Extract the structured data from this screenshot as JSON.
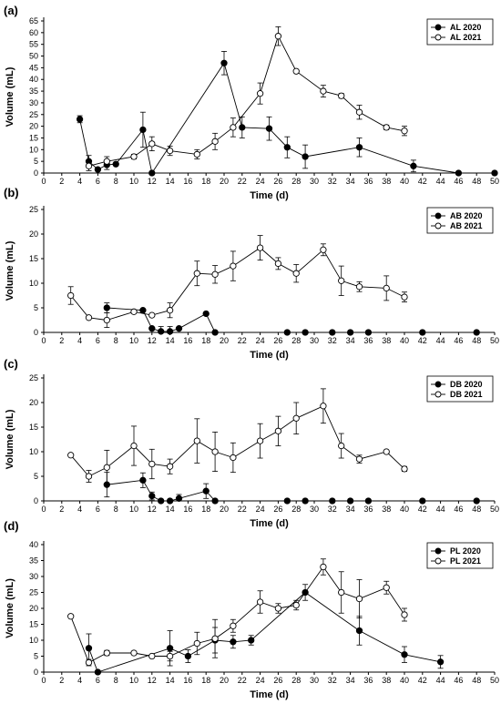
{
  "chart_data": [
    {
      "type": "line",
      "panel_label": "(a)",
      "xlabel": "Time (d)",
      "ylabel": "Volume (mL)",
      "xlim": [
        0,
        50
      ],
      "ylim": [
        0,
        65
      ],
      "xticks": [
        0,
        2,
        4,
        6,
        8,
        10,
        12,
        14,
        16,
        18,
        20,
        22,
        24,
        26,
        28,
        30,
        32,
        34,
        36,
        38,
        40,
        42,
        44,
        46,
        48,
        50
      ],
      "yticks": [
        0,
        5,
        10,
        15,
        20,
        25,
        30,
        35,
        40,
        45,
        50,
        55,
        60,
        65
      ],
      "legend_position": "top-right",
      "series": [
        {
          "name": "AL 2020",
          "marker": "filled",
          "points": [
            {
              "x": 4,
              "y": 23,
              "err": 1.5
            },
            {
              "x": 5,
              "y": 5,
              "err": 2.5
            },
            {
              "x": 6,
              "y": 1.5,
              "err": 0
            },
            {
              "x": 7,
              "y": 3.5,
              "err": 2
            },
            {
              "x": 8,
              "y": 3.8,
              "err": 0
            },
            {
              "x": 11,
              "y": 18.5,
              "err": 7.5
            },
            {
              "x": 12,
              "y": 0,
              "err": 0
            },
            {
              "x": 20,
              "y": 47,
              "err": 5
            },
            {
              "x": 22,
              "y": 19.5,
              "err": 4.5
            },
            {
              "x": 25,
              "y": 19,
              "err": 5
            },
            {
              "x": 27,
              "y": 11,
              "err": 4.5
            },
            {
              "x": 29,
              "y": 7,
              "err": 5
            },
            {
              "x": 35,
              "y": 11,
              "err": 4
            },
            {
              "x": 41,
              "y": 3,
              "err": 2.5
            },
            {
              "x": 46,
              "y": 0,
              "err": 0
            },
            {
              "x": 50,
              "y": 0,
              "err": 0
            }
          ]
        },
        {
          "name": "AL 2021",
          "marker": "open",
          "points": [
            {
              "x": 5,
              "y": 3,
              "err": 2
            },
            {
              "x": 7,
              "y": 5,
              "err": 2
            },
            {
              "x": 10,
              "y": 7,
              "err": 1
            },
            {
              "x": 12,
              "y": 12.5,
              "err": 3
            },
            {
              "x": 14,
              "y": 9.5,
              "err": 2
            },
            {
              "x": 17,
              "y": 8,
              "err": 2
            },
            {
              "x": 19,
              "y": 13.5,
              "err": 3.5
            },
            {
              "x": 21,
              "y": 19.5,
              "err": 4
            },
            {
              "x": 24,
              "y": 34,
              "err": 4.5
            },
            {
              "x": 26,
              "y": 58.5,
              "err": 4
            },
            {
              "x": 28,
              "y": 43.5,
              "err": 0
            },
            {
              "x": 31,
              "y": 35,
              "err": 2.5
            },
            {
              "x": 33,
              "y": 33,
              "err": 1
            },
            {
              "x": 35,
              "y": 26,
              "err": 3
            },
            {
              "x": 38,
              "y": 19.5,
              "err": 1
            },
            {
              "x": 40,
              "y": 18,
              "err": 2
            }
          ]
        }
      ]
    },
    {
      "type": "line",
      "panel_label": "(b)",
      "xlabel": "Time (d)",
      "ylabel": "Volume (mL)",
      "xlim": [
        0,
        50
      ],
      "ylim": [
        0,
        25
      ],
      "xticks": [
        0,
        2,
        4,
        6,
        8,
        10,
        12,
        14,
        16,
        18,
        20,
        22,
        24,
        26,
        28,
        30,
        32,
        34,
        36,
        38,
        40,
        42,
        44,
        46,
        48,
        50
      ],
      "yticks": [
        0,
        5,
        10,
        15,
        20,
        25
      ],
      "legend_position": "top-right",
      "series": [
        {
          "name": "AB 2020",
          "marker": "filled",
          "points": [
            {
              "x": 7,
              "y": 5,
              "err": 1
            },
            {
              "x": 11,
              "y": 4.5,
              "err": 0
            },
            {
              "x": 12,
              "y": 0.8,
              "err": 0
            },
            {
              "x": 13,
              "y": 0.2,
              "err": 1
            },
            {
              "x": 14,
              "y": 0.2,
              "err": 1
            },
            {
              "x": 15,
              "y": 0.8,
              "err": 0
            },
            {
              "x": 18,
              "y": 3.8,
              "err": 0
            },
            {
              "x": 19,
              "y": 0,
              "err": 0
            },
            {
              "x": 27,
              "y": 0,
              "err": 0
            },
            {
              "x": 29,
              "y": 0,
              "err": 0
            },
            {
              "x": 32,
              "y": 0,
              "err": 0
            },
            {
              "x": 34,
              "y": 0,
              "err": 0
            },
            {
              "x": 36,
              "y": 0,
              "err": 0
            },
            {
              "x": 42,
              "y": 0,
              "err": 0
            },
            {
              "x": 48,
              "y": 0,
              "err": 0
            }
          ]
        },
        {
          "name": "AB 2021",
          "marker": "open",
          "points": [
            {
              "x": 3,
              "y": 7.5,
              "err": 1.8
            },
            {
              "x": 5,
              "y": 3,
              "err": 0
            },
            {
              "x": 7,
              "y": 2.5,
              "err": 1.5
            },
            {
              "x": 10,
              "y": 4.2,
              "err": 0
            },
            {
              "x": 12,
              "y": 3.5,
              "err": 0
            },
            {
              "x": 14,
              "y": 4.5,
              "err": 1.5
            },
            {
              "x": 17,
              "y": 12,
              "err": 2.5
            },
            {
              "x": 19,
              "y": 11.8,
              "err": 1.8
            },
            {
              "x": 21,
              "y": 13.5,
              "err": 3
            },
            {
              "x": 24,
              "y": 17.2,
              "err": 2.5
            },
            {
              "x": 26,
              "y": 14,
              "err": 1.2
            },
            {
              "x": 28,
              "y": 12,
              "err": 1.8
            },
            {
              "x": 31,
              "y": 16.8,
              "err": 1.2
            },
            {
              "x": 33,
              "y": 10.5,
              "err": 3
            },
            {
              "x": 35,
              "y": 9.3,
              "err": 1
            },
            {
              "x": 38,
              "y": 9,
              "err": 2.5
            },
            {
              "x": 40,
              "y": 7.2,
              "err": 1
            }
          ]
        }
      ]
    },
    {
      "type": "line",
      "panel_label": "(c)",
      "xlabel": "Time (d)",
      "ylabel": "Volume (mL)",
      "xlim": [
        0,
        50
      ],
      "ylim": [
        0,
        25
      ],
      "xticks": [
        0,
        2,
        4,
        6,
        8,
        10,
        12,
        14,
        16,
        18,
        20,
        22,
        24,
        26,
        28,
        30,
        32,
        34,
        36,
        38,
        40,
        42,
        44,
        46,
        48,
        50
      ],
      "yticks": [
        0,
        5,
        10,
        15,
        20,
        25
      ],
      "legend_position": "top-right",
      "series": [
        {
          "name": "DB 2020",
          "marker": "filled",
          "points": [
            {
              "x": 7,
              "y": 3.3,
              "err": 2.5
            },
            {
              "x": 11,
              "y": 4.2,
              "err": 1.5
            },
            {
              "x": 12,
              "y": 1,
              "err": 0.8
            },
            {
              "x": 13,
              "y": 0,
              "err": 0
            },
            {
              "x": 14,
              "y": 0,
              "err": 0
            },
            {
              "x": 15,
              "y": 0.5,
              "err": 0.8
            },
            {
              "x": 18,
              "y": 2,
              "err": 1.5
            },
            {
              "x": 19,
              "y": 0,
              "err": 0
            },
            {
              "x": 27,
              "y": 0,
              "err": 0
            },
            {
              "x": 29,
              "y": 0,
              "err": 0
            },
            {
              "x": 32,
              "y": 0,
              "err": 0
            },
            {
              "x": 34,
              "y": 0,
              "err": 0
            },
            {
              "x": 36,
              "y": 0,
              "err": 0
            },
            {
              "x": 42,
              "y": 0,
              "err": 0
            },
            {
              "x": 48,
              "y": 0,
              "err": 0
            }
          ]
        },
        {
          "name": "DB 2021",
          "marker": "open",
          "points": [
            {
              "x": 3,
              "y": 9.3,
              "err": 0
            },
            {
              "x": 5,
              "y": 5,
              "err": 1.2
            },
            {
              "x": 7,
              "y": 6.8,
              "err": 3.5
            },
            {
              "x": 10,
              "y": 11.2,
              "err": 4
            },
            {
              "x": 12,
              "y": 7.5,
              "err": 3
            },
            {
              "x": 14,
              "y": 7,
              "err": 1.5
            },
            {
              "x": 17,
              "y": 12.2,
              "err": 4.5
            },
            {
              "x": 19,
              "y": 10,
              "err": 4
            },
            {
              "x": 21,
              "y": 8.8,
              "err": 3
            },
            {
              "x": 24,
              "y": 12.2,
              "err": 3.5
            },
            {
              "x": 26,
              "y": 14.2,
              "err": 3
            },
            {
              "x": 28,
              "y": 16.8,
              "err": 3.2
            },
            {
              "x": 31,
              "y": 19.3,
              "err": 3.5
            },
            {
              "x": 33,
              "y": 11.2,
              "err": 2.5
            },
            {
              "x": 35,
              "y": 8.5,
              "err": 0.8
            },
            {
              "x": 38,
              "y": 10,
              "err": 0
            },
            {
              "x": 40,
              "y": 6.5,
              "err": 0.5
            }
          ]
        }
      ]
    },
    {
      "type": "line",
      "panel_label": "(d)",
      "xlabel": "Time (d)",
      "ylabel": "Volume (mL)",
      "xlim": [
        0,
        50
      ],
      "ylim": [
        0,
        40
      ],
      "xticks": [
        0,
        2,
        4,
        6,
        8,
        10,
        12,
        14,
        16,
        18,
        20,
        22,
        24,
        26,
        28,
        30,
        32,
        34,
        36,
        38,
        40,
        42,
        44,
        46,
        48,
        50
      ],
      "yticks": [
        0,
        5,
        10,
        15,
        20,
        25,
        30,
        35,
        40
      ],
      "legend_position": "top-right",
      "series": [
        {
          "name": "PL 2020",
          "marker": "filled",
          "points": [
            {
              "x": 5,
              "y": 7.5,
              "err": 4.5
            },
            {
              "x": 6,
              "y": 0,
              "err": 0
            },
            {
              "x": 14,
              "y": 7.5,
              "err": 5.5
            },
            {
              "x": 16,
              "y": 5,
              "err": 2
            },
            {
              "x": 19,
              "y": 10,
              "err": 4
            },
            {
              "x": 21,
              "y": 9.5,
              "err": 2
            },
            {
              "x": 23,
              "y": 10,
              "err": 1.5
            },
            {
              "x": 29,
              "y": 25,
              "err": 2.5
            },
            {
              "x": 35,
              "y": 13,
              "err": 4.5
            },
            {
              "x": 40,
              "y": 5.5,
              "err": 2.5
            },
            {
              "x": 44,
              "y": 3.2,
              "err": 2
            }
          ]
        },
        {
          "name": "PL 2021",
          "marker": "open",
          "points": [
            {
              "x": 3,
              "y": 17.5,
              "err": 0
            },
            {
              "x": 5,
              "y": 3,
              "err": 1
            },
            {
              "x": 7,
              "y": 6,
              "err": 0.8
            },
            {
              "x": 10,
              "y": 6,
              "err": 0
            },
            {
              "x": 12,
              "y": 5,
              "err": 0
            },
            {
              "x": 14,
              "y": 5,
              "err": 1.5
            },
            {
              "x": 17,
              "y": 9,
              "err": 3.5
            },
            {
              "x": 19,
              "y": 10.5,
              "err": 6
            },
            {
              "x": 21,
              "y": 14.5,
              "err": 2
            },
            {
              "x": 24,
              "y": 22,
              "err": 3.5
            },
            {
              "x": 26,
              "y": 20,
              "err": 1.5
            },
            {
              "x": 28,
              "y": 21,
              "err": 1.5
            },
            {
              "x": 31,
              "y": 33,
              "err": 2.5
            },
            {
              "x": 33,
              "y": 25,
              "err": 6.5
            },
            {
              "x": 35,
              "y": 23,
              "err": 6
            },
            {
              "x": 38,
              "y": 26.5,
              "err": 2
            },
            {
              "x": 40,
              "y": 18,
              "err": 2
            }
          ]
        }
      ]
    }
  ]
}
